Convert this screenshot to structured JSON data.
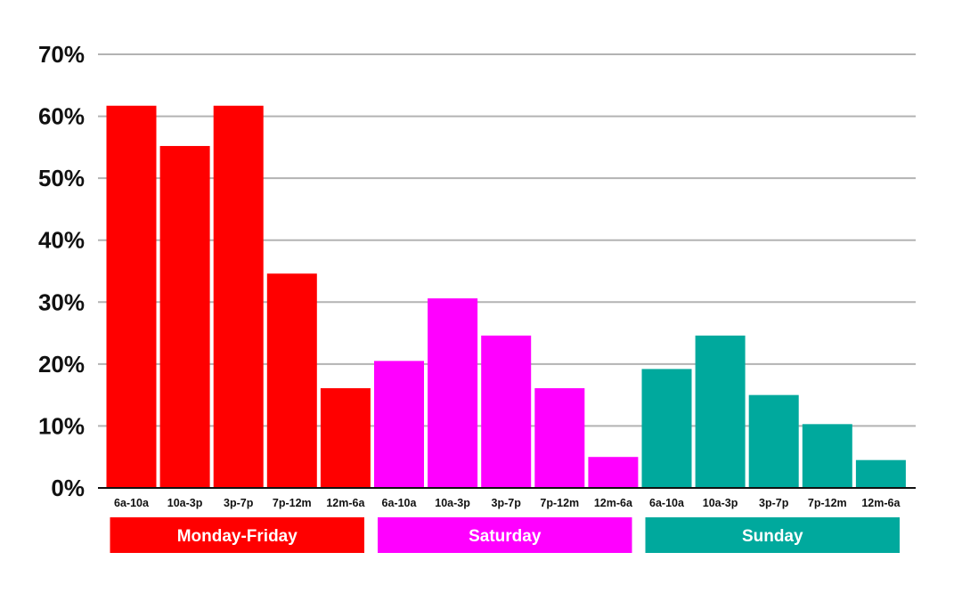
{
  "chart_data": {
    "type": "bar",
    "categories": [
      "6a-10a",
      "10a-3p",
      "3p-7p",
      "7p-12m",
      "12m-6a"
    ],
    "series": [
      {
        "name": "Monday-Friday",
        "color": "#ff0000",
        "values": [
          61.7,
          55.2,
          61.7,
          34.6,
          16.1
        ]
      },
      {
        "name": "Saturday",
        "color": "#ff00ff",
        "values": [
          20.5,
          30.6,
          24.6,
          16.1,
          5.0
        ]
      },
      {
        "name": "Sunday",
        "color": "#00a99d",
        "values": [
          19.2,
          24.6,
          15.0,
          10.3,
          4.5
        ]
      }
    ],
    "yticks": [
      "0%",
      "10%",
      "20%",
      "30%",
      "40%",
      "50%",
      "60%",
      "70%"
    ],
    "ylim": [
      0,
      70
    ],
    "grid": true,
    "title": "",
    "xlabel": "",
    "ylabel": ""
  }
}
